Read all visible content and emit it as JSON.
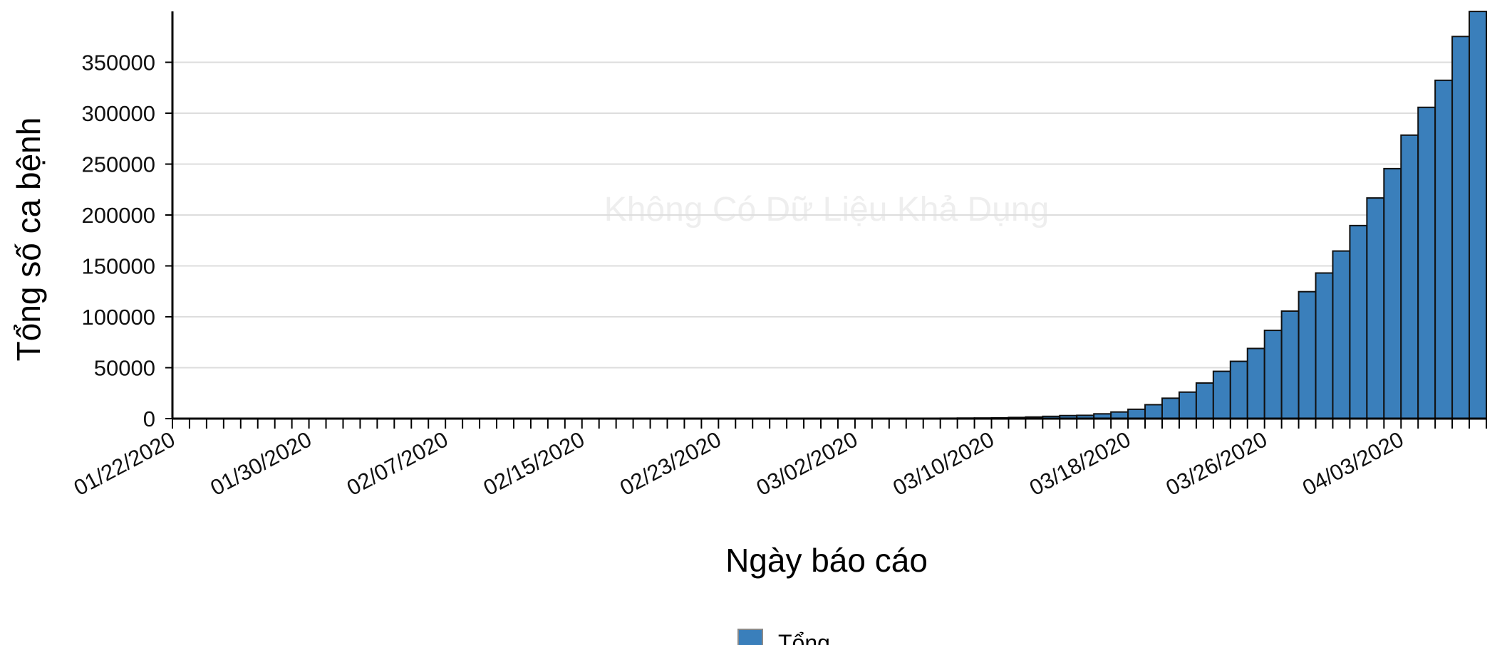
{
  "chart_data": {
    "type": "bar",
    "ylabel": "Tổng số ca bệnh",
    "xlabel": "Ngày báo cáo",
    "watermark": "Không Có Dữ Liệu Khả Dụng",
    "ylim": [
      0,
      400000
    ],
    "y_ticks": [
      0,
      50000,
      100000,
      150000,
      200000,
      250000,
      300000,
      350000
    ],
    "x_tick_labels": [
      "01/22/2020",
      "01/30/2020",
      "02/07/2020",
      "02/15/2020",
      "02/23/2020",
      "03/02/2020",
      "03/10/2020",
      "03/18/2020",
      "03/26/2020",
      "04/03/2020"
    ],
    "grid": true,
    "legend_placement": "bottom-center",
    "bar_color": "#3a7fbb",
    "series": [
      {
        "name": "Tổng",
        "x": [
          "01/22/2020",
          "01/23/2020",
          "01/24/2020",
          "01/25/2020",
          "01/26/2020",
          "01/27/2020",
          "01/28/2020",
          "01/29/2020",
          "01/30/2020",
          "01/31/2020",
          "02/01/2020",
          "02/02/2020",
          "02/03/2020",
          "02/04/2020",
          "02/05/2020",
          "02/06/2020",
          "02/07/2020",
          "02/08/2020",
          "02/09/2020",
          "02/10/2020",
          "02/11/2020",
          "02/12/2020",
          "02/13/2020",
          "02/14/2020",
          "02/15/2020",
          "02/16/2020",
          "02/17/2020",
          "02/18/2020",
          "02/19/2020",
          "02/20/2020",
          "02/21/2020",
          "02/22/2020",
          "02/23/2020",
          "02/24/2020",
          "02/25/2020",
          "02/26/2020",
          "02/27/2020",
          "02/28/2020",
          "02/29/2020",
          "03/01/2020",
          "03/02/2020",
          "03/03/2020",
          "03/04/2020",
          "03/05/2020",
          "03/06/2020",
          "03/07/2020",
          "03/08/2020",
          "03/09/2020",
          "03/10/2020",
          "03/11/2020",
          "03/12/2020",
          "03/13/2020",
          "03/14/2020",
          "03/15/2020",
          "03/16/2020",
          "03/17/2020",
          "03/18/2020",
          "03/19/2020",
          "03/20/2020",
          "03/21/2020",
          "03/22/2020",
          "03/23/2020",
          "03/24/2020",
          "03/25/2020",
          "03/26/2020",
          "03/27/2020",
          "03/28/2020",
          "03/29/2020",
          "03/30/2020",
          "03/31/2020",
          "04/01/2020",
          "04/02/2020",
          "04/03/2020",
          "04/04/2020",
          "04/05/2020",
          "04/06/2020",
          "04/07/2020"
        ],
        "values": [
          1,
          1,
          2,
          2,
          5,
          5,
          5,
          5,
          5,
          6,
          8,
          8,
          11,
          11,
          11,
          12,
          12,
          12,
          12,
          12,
          13,
          13,
          14,
          14,
          14,
          14,
          14,
          14,
          14,
          14,
          16,
          16,
          16,
          16,
          16,
          16,
          17,
          17,
          25,
          32,
          55,
          74,
          107,
          184,
          237,
          403,
          519,
          594,
          782,
          1147,
          1586,
          2219,
          2978,
          3212,
          4679,
          6512,
          9169,
          13663,
          20030,
          26025,
          34944,
          46450,
          56255,
          68905,
          86662,
          105584,
          124686,
          143025,
          164620,
          189618,
          216721,
          245540,
          278458,
          305755,
          332308,
          375348,
          399929
        ]
      }
    ]
  }
}
